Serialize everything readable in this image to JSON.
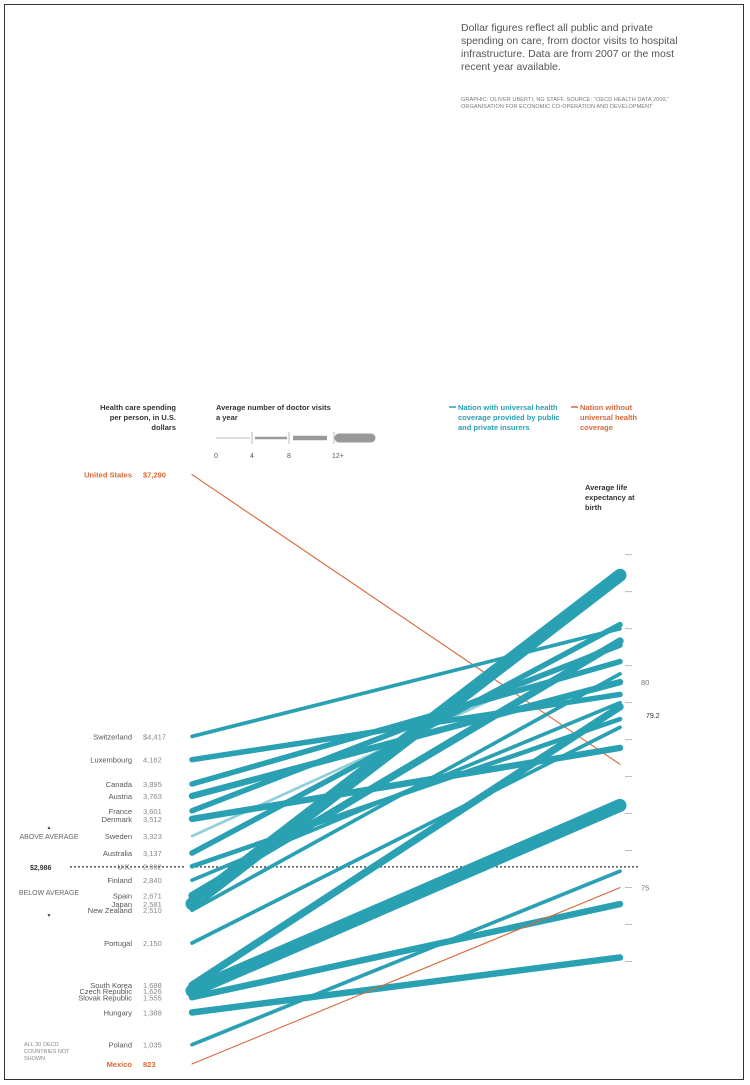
{
  "note": {
    "text": "Dollar figures reflect all public and private spending on care, from doctor visits to hospital infrastructure. Data are from 2007 or the most recent year available.",
    "credit": "Graphic: Oliver Uberti, NG Staff. Source: \"OECD Health Data 2009,\" Organisation for Economic Co-operation and Development"
  },
  "headers": {
    "spending": "Health care spending per person, in U.S. dollars",
    "visits": "Average number of doctor visits a year",
    "life": "Average life expectancy at birth"
  },
  "visits_key": {
    "ticks": [
      "0",
      "4",
      "8",
      "12+"
    ]
  },
  "legend": {
    "universal": "Nation with universal health coverage provided by public and private insurers",
    "non_universal": "Nation without universal health coverage"
  },
  "average": {
    "label": "$2,986",
    "above": "Above average",
    "below": "Below average",
    "life_label": "79.2"
  },
  "footnote": "All 30 OECD countries not shown",
  "colors": {
    "universal": "#2aa0b3",
    "non_universal": "#d9683a",
    "grid": "#999999"
  },
  "chart_data": {
    "type": "slope",
    "left_axis": "Health care spending per person, in U.S. dollars",
    "right_axis": "Average life expectancy at birth",
    "right_ticks": [
      75,
      80
    ],
    "series": [
      {
        "country": "United States",
        "spending": 7290,
        "spending_label": "$7,290",
        "life": 78.0,
        "visits": 4,
        "universal": false
      },
      {
        "country": "Switzerland",
        "spending": 4417,
        "spending_label": "$4,417",
        "life": 81.3,
        "visits": 4,
        "universal": true
      },
      {
        "country": "Luxembourg",
        "spending": 4162,
        "spending_label": "4,162",
        "life": 79.7,
        "visits": 6,
        "universal": true
      },
      {
        "country": "Canada",
        "spending": 3895,
        "spending_label": "3,895",
        "life": 80.5,
        "visits": 6,
        "universal": true
      },
      {
        "country": "Austria",
        "spending": 3763,
        "spending_label": "3,763",
        "life": 80.0,
        "visits": 7,
        "universal": true
      },
      {
        "country": "France",
        "spending": 3601,
        "spending_label": "3,601",
        "life": 80.9,
        "visits": 6,
        "universal": true
      },
      {
        "country": "Denmark",
        "spending": 3512,
        "spending_label": "3,512",
        "life": 78.4,
        "visits": 7,
        "universal": true
      },
      {
        "country": "Sweden",
        "spending": 3323,
        "spending_label": "3,323",
        "life": 81.0,
        "visits": 3,
        "universal": true
      },
      {
        "country": "Australia",
        "spending": 3137,
        "spending_label": "3,137",
        "life": 81.4,
        "visits": 6,
        "universal": true
      },
      {
        "country": "U.K.",
        "spending": 2992,
        "spending_label": "2,992",
        "life": 79.1,
        "visits": 5,
        "universal": true
      },
      {
        "country": "Finland",
        "spending": 2840,
        "spending_label": "2,840",
        "life": 79.5,
        "visits": 4,
        "universal": true
      },
      {
        "country": "Spain",
        "spending": 2671,
        "spending_label": "2,671",
        "life": 81.0,
        "visits": 8,
        "universal": true
      },
      {
        "country": "Japan",
        "spending": 2581,
        "spending_label": "2,581",
        "life": 82.6,
        "visits": 14,
        "universal": true
      },
      {
        "country": "New Zealand",
        "spending": 2510,
        "spending_label": "2,510",
        "life": 80.2,
        "visits": 4,
        "universal": true
      },
      {
        "country": "Portugal",
        "spending": 2150,
        "spending_label": "2,150",
        "life": 78.9,
        "visits": 4,
        "universal": true
      },
      {
        "country": "South Korea",
        "spending": 1688,
        "spending_label": "1,688",
        "life": 79.4,
        "visits": 8,
        "universal": true
      },
      {
        "country": "Czech Republic",
        "spending": 1626,
        "spending_label": "1,626",
        "life": 77.0,
        "visits": 13,
        "universal": true
      },
      {
        "country": "Slovak Republic",
        "spending": 1555,
        "spending_label": "1,555",
        "life": 74.6,
        "visits": 7,
        "universal": true
      },
      {
        "country": "Hungary",
        "spending": 1388,
        "spending_label": "1,388",
        "life": 73.3,
        "visits": 7,
        "universal": true
      },
      {
        "country": "Poland",
        "spending": 1035,
        "spending_label": "1,035",
        "life": 75.4,
        "visits": 4,
        "universal": true
      },
      {
        "country": "Mexico",
        "spending": 823,
        "spending_label": "823",
        "life": 75.0,
        "visits": 3,
        "universal": false
      }
    ]
  }
}
